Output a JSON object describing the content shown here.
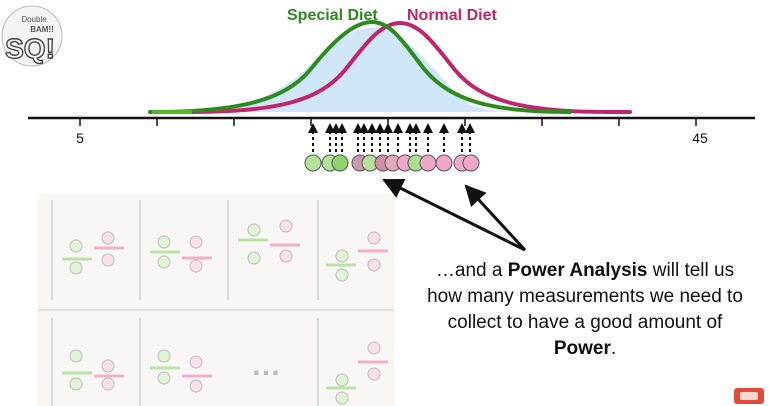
{
  "logo": {
    "top_text": "Double",
    "mid_text": "BAM!!",
    "letters": "SQ!"
  },
  "curves": {
    "special": {
      "label": "Special Diet",
      "color": "#2e8b1e"
    },
    "normal": {
      "label": "Normal Diet",
      "color": "#c0266d"
    }
  },
  "axis": {
    "tick_left": "5",
    "tick_right": "45"
  },
  "caption": {
    "prefix": "…and a ",
    "bold1": "Power Analysis",
    "middle": " will tell us how many measurements we need to collect to have a good amount of ",
    "bold2": "Power",
    "suffix": "."
  },
  "grid": {
    "ellipsis": "…"
  },
  "colors": {
    "fill": "#cfe6fb",
    "green_dot": "#a9df8f",
    "pink_dot": "#f3a7c8"
  }
}
